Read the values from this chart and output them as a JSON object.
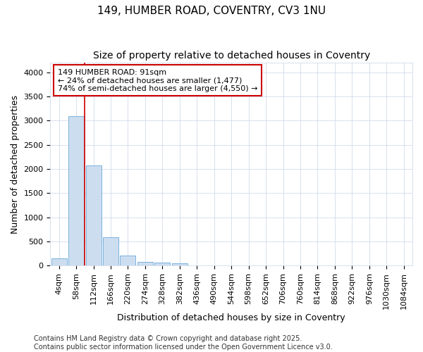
{
  "title_line1": "149, HUMBER ROAD, COVENTRY, CV3 1NU",
  "title_line2": "Size of property relative to detached houses in Coventry",
  "xlabel": "Distribution of detached houses by size in Coventry",
  "ylabel": "Number of detached properties",
  "categories": [
    "4sqm",
    "58sqm",
    "112sqm",
    "166sqm",
    "220sqm",
    "274sqm",
    "328sqm",
    "382sqm",
    "436sqm",
    "490sqm",
    "544sqm",
    "598sqm",
    "652sqm",
    "706sqm",
    "760sqm",
    "814sqm",
    "868sqm",
    "922sqm",
    "976sqm",
    "1030sqm",
    "1084sqm"
  ],
  "values": [
    150,
    3100,
    2080,
    580,
    210,
    75,
    55,
    45,
    5,
    0,
    0,
    0,
    0,
    0,
    0,
    0,
    0,
    0,
    0,
    0,
    0
  ],
  "bar_color": "#ccddf0",
  "bar_edge_color": "#6baad8",
  "annotation_line1": "149 HUMBER ROAD: 91sqm",
  "annotation_line2": "← 24% of detached houses are smaller (1,477)",
  "annotation_line3": "74% of semi-detached houses are larger (4,550) →",
  "annotation_box_facecolor": "#ffffff",
  "annotation_box_edgecolor": "#cc0000",
  "red_line_color": "#cc0000",
  "red_line_x": 1.5,
  "ylim": [
    0,
    4200
  ],
  "yticks": [
    0,
    500,
    1000,
    1500,
    2000,
    2500,
    3000,
    3500,
    4000
  ],
  "footer_line1": "Contains HM Land Registry data © Crown copyright and database right 2025.",
  "footer_line2": "Contains public sector information licensed under the Open Government Licence v3.0.",
  "background_color": "#ffffff",
  "plot_bg_color": "#ffffff",
  "grid_color": "#c8d4e8",
  "title1_fontsize": 11,
  "title2_fontsize": 10,
  "tick_fontsize": 8,
  "label_fontsize": 9,
  "annotation_fontsize": 8,
  "footer_fontsize": 7
}
